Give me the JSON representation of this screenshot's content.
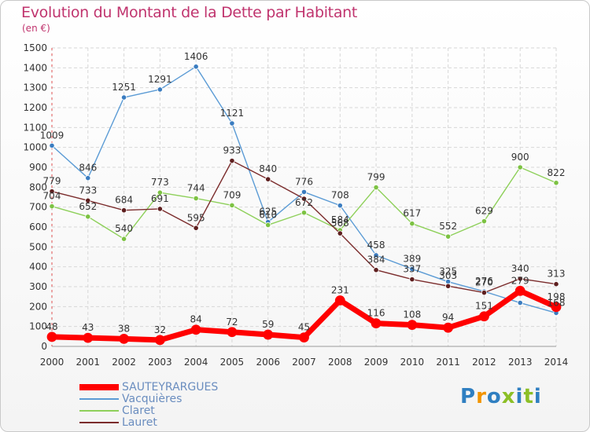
{
  "title": "Evolution du Montant de la Dette par Habitant",
  "unit_label": "(en €)",
  "logo_text": "Proxiti",
  "colors": {
    "title": "#c0346e",
    "grid": "#d7d7d7",
    "axis_text": "#333333",
    "logo": [
      "#2f7fc1",
      "#f29400",
      "#2f7fc1",
      "#8cbf26",
      "#2f7fc1",
      "#8cbf26",
      "#2f7fc1"
    ]
  },
  "chart_data": {
    "type": "line",
    "x": [
      "2000",
      "2001",
      "2002",
      "2003",
      "2004",
      "2005",
      "2006",
      "2007",
      "2008",
      "2009",
      "2010",
      "2011",
      "2012",
      "2013",
      "2014"
    ],
    "ylim": [
      0,
      1500
    ],
    "yticks": [
      0,
      100,
      200,
      300,
      400,
      500,
      600,
      700,
      800,
      900,
      1000,
      1100,
      1200,
      1300,
      1400,
      1500
    ],
    "grid": true,
    "legend_position": "bottom-left",
    "series": [
      {
        "name": "Vacquières",
        "color": "#5b9bd5",
        "marker": "#3a7cc0",
        "width": 1.4,
        "values": [
          1009,
          846,
          1251,
          1291,
          1406,
          1121,
          625,
          776,
          708,
          458,
          389,
          325,
          276,
          219,
          168
        ],
        "labels": [
          "1009",
          "846",
          "1251",
          "1291",
          "1406",
          "1121",
          "625",
          "776",
          "708",
          "458",
          "389",
          "325",
          "276",
          "",
          "168"
        ]
      },
      {
        "name": "Claret",
        "color": "#8ed05a",
        "marker": "#7cc242",
        "width": 1.4,
        "values": [
          704,
          652,
          540,
          773,
          744,
          709,
          610,
          672,
          584,
          799,
          617,
          552,
          629,
          900,
          822
        ],
        "labels": [
          "704",
          "652",
          "540",
          "773",
          "744",
          "709",
          "610",
          "672",
          "584",
          "799",
          "617",
          "552",
          "629",
          "900",
          "822"
        ]
      },
      {
        "name": "Lauret",
        "color": "#7b2c2c",
        "marker": "#5e1f1f",
        "width": 1.4,
        "values": [
          779,
          733,
          684,
          691,
          595,
          933,
          840,
          742,
          568,
          384,
          337,
          303,
          270,
          340,
          313
        ],
        "labels": [
          "779",
          "733",
          "684",
          "691",
          "595",
          "933",
          "840",
          "",
          "568",
          "384",
          "337",
          "303",
          "270",
          "340",
          "313"
        ]
      },
      {
        "name": "SAUTEYRARGUES",
        "color": "#ff0000",
        "marker": "#ff0000",
        "width": 7,
        "values": [
          48,
          43,
          38,
          32,
          84,
          72,
          59,
          45,
          231,
          116,
          108,
          94,
          151,
          279,
          198
        ],
        "labels": [
          "48",
          "43",
          "38",
          "32",
          "84",
          "72",
          "59",
          "45",
          "231",
          "116",
          "108",
          "94",
          "151",
          "279",
          "198"
        ]
      }
    ]
  }
}
